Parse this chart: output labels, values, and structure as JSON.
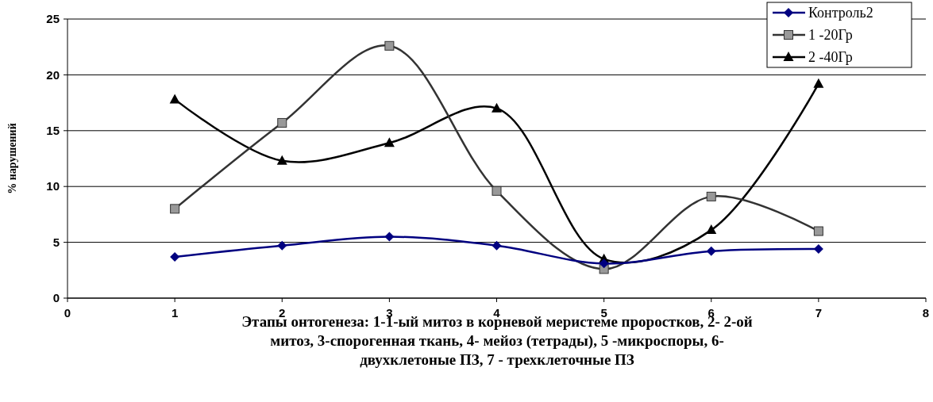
{
  "chart_data": {
    "type": "line",
    "xlabel": "Этапы онтогенеза: 1-1-ый митоз в корневой меристеме проростков, 2- 2-ой митоз, 3-спорогенная ткань, 4- мейоз (тетрады), 5 -микроспоры, 6- двухклетоные ПЗ, 7 - трехклеточные ПЗ",
    "ylabel": "% нарушений",
    "x": [
      1,
      2,
      3,
      4,
      5,
      6,
      7
    ],
    "series": [
      {
        "name": "Контроль2",
        "color": "#000080",
        "marker": "diamond",
        "values": [
          3.7,
          4.7,
          5.5,
          4.7,
          3.1,
          4.2,
          4.4
        ]
      },
      {
        "name": "1 -20Гр",
        "color": "#333333",
        "marker": "square",
        "values": [
          8.0,
          15.7,
          22.6,
          9.6,
          2.6,
          9.1,
          6.0
        ]
      },
      {
        "name": "2 -40Гр",
        "color": "#000000",
        "marker": "triangle",
        "values": [
          17.8,
          12.3,
          13.9,
          17.0,
          3.5,
          6.1,
          19.2
        ]
      }
    ],
    "xlim": [
      0,
      8
    ],
    "xticks": [
      0,
      1,
      2,
      3,
      4,
      5,
      6,
      7,
      8
    ],
    "ylim": [
      0,
      25
    ],
    "yticks": [
      0,
      5,
      10,
      15,
      20,
      25
    ],
    "grid": "y",
    "legend": "top right"
  }
}
